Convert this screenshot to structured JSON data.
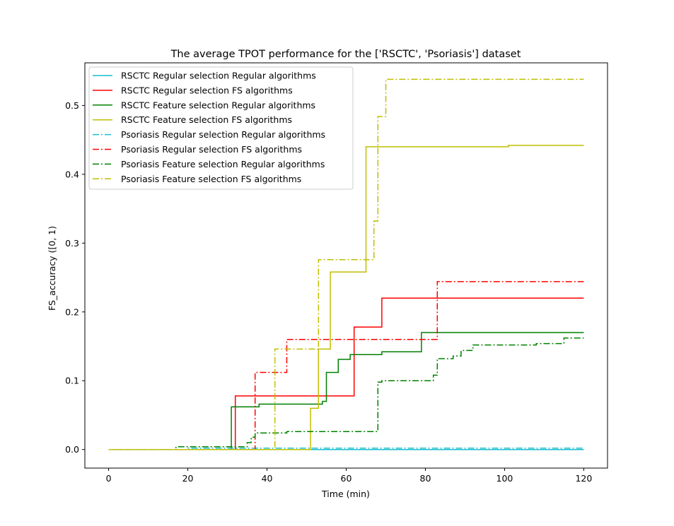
{
  "chart_data": {
    "type": "line",
    "title": "The average TPOT performance for the ['RSCTC', 'Psoriasis'] dataset",
    "xlabel": "Time (min)",
    "ylabel": "FS_accuracy ([0, 1)",
    "xlim": [
      -6,
      126
    ],
    "ylim": [
      -0.027,
      0.562
    ],
    "xticks": [
      0,
      20,
      40,
      60,
      80,
      100,
      120
    ],
    "xtick_labels": [
      "0",
      "20",
      "40",
      "60",
      "80",
      "100",
      "120"
    ],
    "yticks": [
      0.0,
      0.1,
      0.2,
      0.3,
      0.4,
      0.5
    ],
    "ytick_labels": [
      "0.0",
      "0.1",
      "0.2",
      "0.3",
      "0.4",
      "0.5"
    ],
    "grid": false,
    "legend_position": "top-left",
    "step": "post",
    "series": [
      {
        "name": "RSCTC Regular selection Regular algorithms",
        "color": "#17becf",
        "style": "solid",
        "points": [
          [
            0,
            0.0
          ],
          [
            120,
            0.0
          ]
        ]
      },
      {
        "name": "RSCTC Regular selection FS algorithms",
        "color": "#ff0000",
        "style": "solid",
        "points": [
          [
            0,
            0.0
          ],
          [
            32,
            0.078
          ],
          [
            62,
            0.178
          ],
          [
            69,
            0.22
          ],
          [
            120,
            0.22
          ]
        ]
      },
      {
        "name": "RSCTC Feature selection Regular algorithms",
        "color": "#008000",
        "style": "solid",
        "points": [
          [
            0,
            0.0
          ],
          [
            31,
            0.062
          ],
          [
            38,
            0.066
          ],
          [
            54,
            0.07
          ],
          [
            55,
            0.112
          ],
          [
            58,
            0.131
          ],
          [
            61,
            0.138
          ],
          [
            69,
            0.142
          ],
          [
            79,
            0.17
          ],
          [
            120,
            0.17
          ]
        ]
      },
      {
        "name": "RSCTC Feature selection FS algorithms",
        "color": "#bfbf00",
        "style": "solid",
        "points": [
          [
            0,
            0.0
          ],
          [
            51,
            0.06
          ],
          [
            53,
            0.146
          ],
          [
            56,
            0.258
          ],
          [
            65,
            0.44
          ],
          [
            101,
            0.442
          ],
          [
            120,
            0.442
          ]
        ]
      },
      {
        "name": "Psoriasis Regular selection Regular algorithms",
        "color": "#17becf",
        "style": "dashdot",
        "points": [
          [
            0,
            0.0
          ],
          [
            20,
            0.002
          ],
          [
            120,
            0.002
          ]
        ]
      },
      {
        "name": "Psoriasis Regular selection FS algorithms",
        "color": "#ff0000",
        "style": "dashdot",
        "points": [
          [
            0,
            0.0
          ],
          [
            37,
            0.112
          ],
          [
            45,
            0.16
          ],
          [
            83,
            0.244
          ],
          [
            120,
            0.244
          ]
        ]
      },
      {
        "name": "Psoriasis Feature selection Regular algorithms",
        "color": "#008000",
        "style": "dashdot",
        "points": [
          [
            0,
            0.0
          ],
          [
            17,
            0.004
          ],
          [
            35,
            0.01
          ],
          [
            36,
            0.018
          ],
          [
            37,
            0.024
          ],
          [
            45,
            0.026
          ],
          [
            68,
            0.098
          ],
          [
            69,
            0.1
          ],
          [
            82,
            0.108
          ],
          [
            83,
            0.132
          ],
          [
            87,
            0.136
          ],
          [
            89,
            0.144
          ],
          [
            92,
            0.152
          ],
          [
            108,
            0.154
          ],
          [
            115,
            0.162
          ],
          [
            120,
            0.162
          ]
        ]
      },
      {
        "name": "Psoriasis Feature selection FS algorithms",
        "color": "#bfbf00",
        "style": "dashdot",
        "points": [
          [
            0,
            0.0
          ],
          [
            42,
            0.146
          ],
          [
            53,
            0.276
          ],
          [
            67,
            0.332
          ],
          [
            68,
            0.484
          ],
          [
            70,
            0.538
          ],
          [
            120,
            0.538
          ]
        ]
      }
    ]
  }
}
